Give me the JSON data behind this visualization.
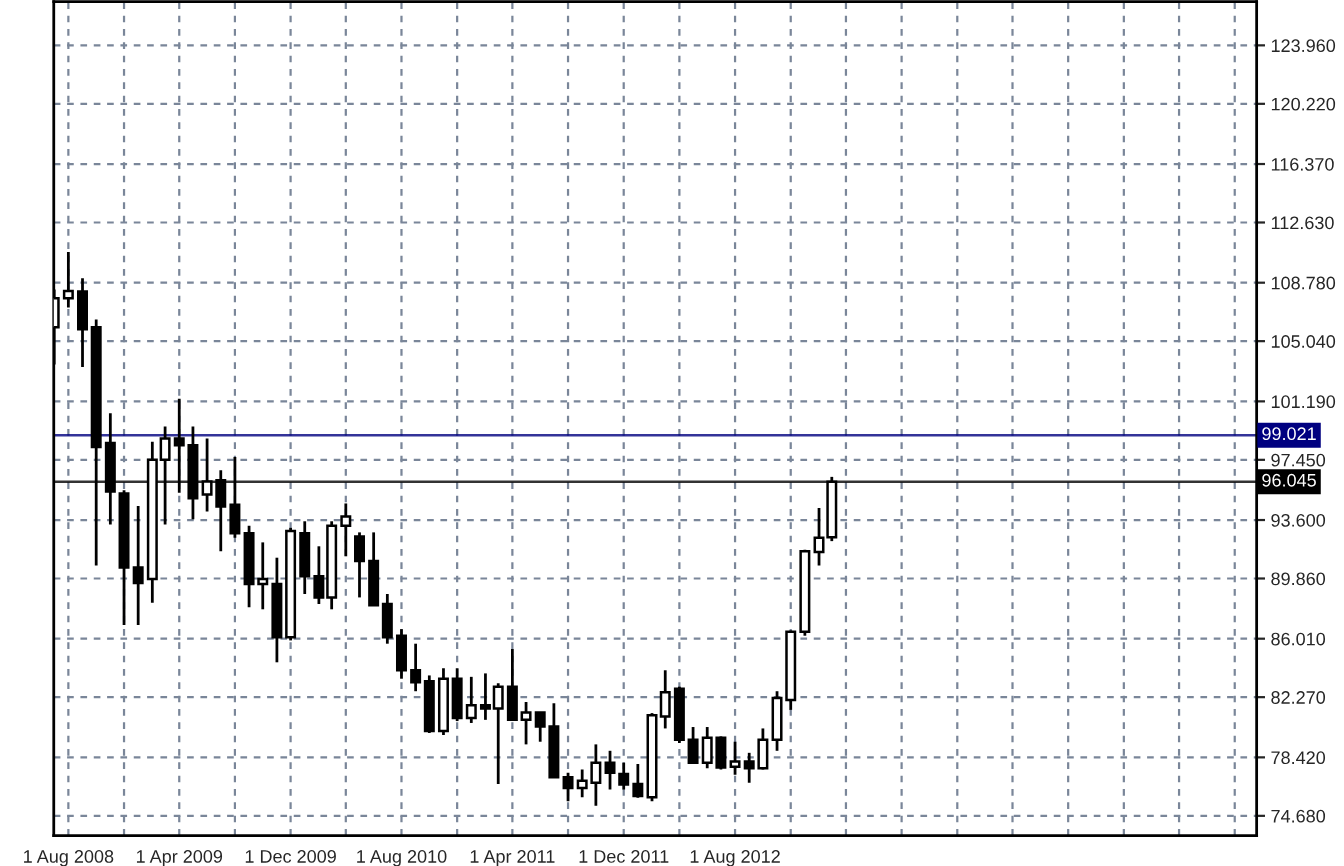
{
  "chart_data": {
    "type": "candlestick",
    "x": [
      "2008-07",
      "2008-08",
      "2008-09",
      "2008-10",
      "2008-11",
      "2008-12",
      "2009-01",
      "2009-02",
      "2009-03",
      "2009-04",
      "2009-05",
      "2009-06",
      "2009-07",
      "2009-08",
      "2009-09",
      "2009-10",
      "2009-11",
      "2009-12",
      "2010-01",
      "2010-02",
      "2010-03",
      "2010-04",
      "2010-05",
      "2010-06",
      "2010-07",
      "2010-08",
      "2010-09",
      "2010-10",
      "2010-11",
      "2010-12",
      "2011-01",
      "2011-02",
      "2011-03",
      "2011-04",
      "2011-05",
      "2011-06",
      "2011-07",
      "2011-08",
      "2011-09",
      "2011-10",
      "2011-11",
      "2011-12",
      "2012-01",
      "2012-02",
      "2012-03",
      "2012-04",
      "2012-05",
      "2012-06",
      "2012-07",
      "2012-08",
      "2012-09",
      "2012-10",
      "2012-11",
      "2012-12",
      "2013-01",
      "2013-02",
      "2013-03"
    ],
    "ohlc": [
      [
        105.93,
        108.34,
        103.55,
        107.79
      ],
      [
        107.79,
        110.75,
        107.2,
        108.25
      ],
      [
        108.21,
        109.06,
        103.39,
        105.8
      ],
      [
        105.93,
        106.43,
        90.69,
        98.27
      ],
      [
        98.52,
        100.43,
        93.32,
        95.42
      ],
      [
        95.3,
        95.51,
        86.88,
        90.56
      ],
      [
        90.56,
        94.49,
        86.88,
        89.58
      ],
      [
        89.83,
        98.6,
        88.31,
        97.45
      ],
      [
        97.45,
        99.58,
        93.32,
        98.81
      ],
      [
        98.81,
        101.35,
        95.35,
        98.39
      ],
      [
        98.39,
        99.58,
        93.65,
        95.0
      ],
      [
        95.23,
        98.81,
        94.15,
        96.06
      ],
      [
        96.15,
        96.78,
        91.61,
        94.46
      ],
      [
        94.58,
        97.63,
        92.46,
        92.76
      ],
      [
        92.76,
        93.23,
        88.02,
        89.51
      ],
      [
        89.51,
        92.17,
        87.89,
        89.83
      ],
      [
        89.51,
        91.19,
        84.5,
        86.11
      ],
      [
        86.11,
        93.1,
        85.9,
        92.89
      ],
      [
        92.76,
        93.52,
        88.87,
        90.01
      ],
      [
        90.01,
        91.92,
        88.23,
        88.65
      ],
      [
        88.65,
        93.52,
        87.89,
        93.23
      ],
      [
        93.23,
        94.66,
        91.28,
        93.82
      ],
      [
        92.55,
        92.81,
        88.65,
        90.98
      ],
      [
        90.98,
        92.81,
        88.15,
        88.15
      ],
      [
        88.23,
        88.87,
        85.69,
        86.11
      ],
      [
        86.2,
        86.62,
        83.45,
        83.99
      ],
      [
        83.99,
        85.69,
        82.65,
        83.23
      ],
      [
        83.28,
        83.66,
        79.98,
        80.1
      ],
      [
        80.1,
        84.12,
        79.85,
        83.45
      ],
      [
        83.45,
        84.12,
        80.74,
        80.94
      ],
      [
        80.94,
        83.57,
        80.62,
        81.76
      ],
      [
        81.76,
        83.79,
        80.82,
        81.54
      ],
      [
        81.54,
        83.16,
        76.72,
        82.94
      ],
      [
        82.94,
        85.35,
        80.82,
        80.82
      ],
      [
        80.82,
        81.96,
        79.25,
        81.29
      ],
      [
        81.29,
        81.29,
        79.42,
        80.4
      ],
      [
        80.4,
        81.88,
        77.14,
        77.14
      ],
      [
        77.14,
        77.44,
        75.61,
        76.46
      ],
      [
        76.46,
        77.64,
        75.87,
        76.93
      ],
      [
        76.8,
        79.25,
        75.32,
        78.08
      ],
      [
        78.08,
        78.84,
        76.37,
        77.44
      ],
      [
        77.35,
        78.08,
        76.37,
        76.68
      ],
      [
        76.72,
        77.99,
        75.83,
        75.95
      ],
      [
        75.87,
        81.25,
        75.61,
        81.12
      ],
      [
        81.03,
        83.99,
        80.27,
        82.59
      ],
      [
        82.81,
        82.94,
        79.34,
        79.55
      ],
      [
        79.55,
        80.36,
        77.99,
        78.08
      ],
      [
        78.08,
        80.36,
        77.73,
        79.68
      ],
      [
        79.68,
        79.76,
        77.64,
        77.77
      ],
      [
        77.82,
        79.42,
        77.31,
        78.15
      ],
      [
        78.15,
        78.71,
        76.8,
        77.73
      ],
      [
        77.73,
        80.27,
        77.64,
        79.55
      ],
      [
        79.55,
        82.65,
        78.84,
        82.21
      ],
      [
        82.09,
        86.53,
        81.46,
        86.45
      ],
      [
        86.45,
        91.7,
        86.2,
        91.61
      ],
      [
        91.55,
        94.37,
        90.69,
        92.46
      ],
      [
        92.5,
        96.36,
        92.25,
        96.045
      ]
    ],
    "xlim": [
      "2008-06-30",
      "2015-09-18"
    ],
    "xticks": [
      {
        "value": "2008-08-01",
        "label": "1 Aug 2008"
      },
      {
        "value": "2008-12-01",
        "label": null
      },
      {
        "value": "2009-04-01",
        "label": "1 Apr 2009"
      },
      {
        "value": "2009-08-01",
        "label": null
      },
      {
        "value": "2009-12-01",
        "label": "1 Dec 2009"
      },
      {
        "value": "2010-04-01",
        "label": null
      },
      {
        "value": "2010-08-01",
        "label": "1 Aug 2010"
      },
      {
        "value": "2010-12-01",
        "label": null
      },
      {
        "value": "2011-04-01",
        "label": "1 Apr 2011"
      },
      {
        "value": "2011-08-01",
        "label": null
      },
      {
        "value": "2011-12-01",
        "label": "1 Dec 2011"
      },
      {
        "value": "2012-04-01",
        "label": null
      },
      {
        "value": "2012-08-01",
        "label": "1 Aug 2012"
      },
      {
        "value": "2012-12-01",
        "label": null
      },
      {
        "value": "2013-04-01",
        "label": null
      },
      {
        "value": "2013-08-01",
        "label": null
      },
      {
        "value": "2013-12-01",
        "label": null
      },
      {
        "value": "2014-04-01",
        "label": null
      },
      {
        "value": "2014-08-01",
        "label": null
      },
      {
        "value": "2014-12-01",
        "label": null
      },
      {
        "value": "2015-04-01",
        "label": null
      },
      {
        "value": "2015-08-01",
        "label": null
      }
    ],
    "ylim": [
      73.41,
      126.75
    ],
    "yticks": [
      {
        "value": 74.68,
        "label": "74.680"
      },
      {
        "value": 78.42,
        "label": "78.420"
      },
      {
        "value": 82.27,
        "label": "82.270"
      },
      {
        "value": 86.01,
        "label": "86.010"
      },
      {
        "value": 89.86,
        "label": "89.860"
      },
      {
        "value": 93.6,
        "label": "93.600"
      },
      {
        "value": 97.45,
        "label": "97.450"
      },
      {
        "value": 101.19,
        "label": "101.190"
      },
      {
        "value": 105.04,
        "label": "105.040"
      },
      {
        "value": 108.78,
        "label": "108.780"
      },
      {
        "value": 112.63,
        "label": "112.630"
      },
      {
        "value": 116.37,
        "label": "116.370"
      },
      {
        "value": 120.22,
        "label": "120.220"
      },
      {
        "value": 123.96,
        "label": "123.960"
      }
    ],
    "ref_lines": [
      {
        "axis": "y",
        "value": 99.021,
        "label": "99.021",
        "color": "#000080"
      },
      {
        "axis": "y",
        "value": 96.045,
        "label": "96.045",
        "color": "#000000"
      }
    ],
    "grid": true
  }
}
